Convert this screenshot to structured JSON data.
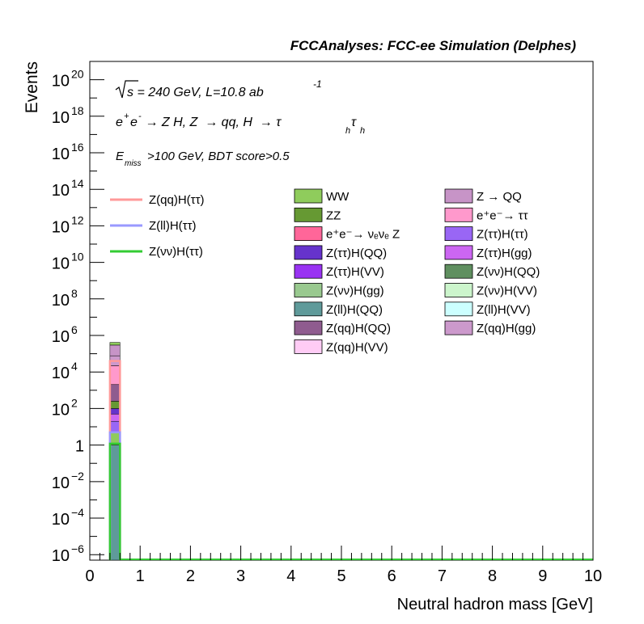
{
  "chart_data": {
    "type": "bar",
    "header": "FCCAnalyses: FCC-ee Simulation (Delphes)",
    "annotations": {
      "line1_sqrt": "s",
      "line1_rest": " = 240 GeV, L=10.8 ab",
      "line1_sup": "-1",
      "line2_a": "e",
      "line2_sup1": "+",
      "line2_b": "e",
      "line2_sup2": "-",
      "line2_c": " → Z H, Z  → qq, H  → τ",
      "line2_sub1": "h",
      "line2_d": "τ",
      "line2_sub2": "h",
      "line3_a": "E",
      "line3_sub": "miss",
      "line3_b": ">100 GeV, BDT score>0.5"
    },
    "xlabel": "Neutral hadron mass [GeV]",
    "ylabel": "Events",
    "xlim": [
      0,
      10
    ],
    "ylim_log10": [
      -6.3,
      21
    ],
    "log_y": true,
    "x_ticks": [
      "0",
      "1",
      "2",
      "3",
      "4",
      "5",
      "6",
      "7",
      "8",
      "9",
      "10"
    ],
    "y_ticks": [
      {
        "exp": -6,
        "base": "10",
        "sup": "−6"
      },
      {
        "exp": -4,
        "base": "10",
        "sup": "−4"
      },
      {
        "exp": -2,
        "base": "10",
        "sup": "−2"
      },
      {
        "exp": 0,
        "base": "1",
        "sup": ""
      },
      {
        "exp": 2,
        "base": "10",
        "sup": "2"
      },
      {
        "exp": 4,
        "base": "10",
        "sup": "4"
      },
      {
        "exp": 6,
        "base": "10",
        "sup": "6"
      },
      {
        "exp": 8,
        "base": "10",
        "sup": "8"
      },
      {
        "exp": 10,
        "base": "10",
        "sup": "10"
      },
      {
        "exp": 12,
        "base": "10",
        "sup": "12"
      },
      {
        "exp": 14,
        "base": "10",
        "sup": "14"
      },
      {
        "exp": 16,
        "base": "10",
        "sup": "16"
      },
      {
        "exp": 18,
        "base": "10",
        "sup": "18"
      },
      {
        "exp": 20,
        "base": "10",
        "sup": "20"
      }
    ],
    "bin": [
      0.4,
      0.6
    ],
    "stack": [
      {
        "name": "Z(ll)H(QQ)",
        "value": 1,
        "color": "#5f9a9a"
      },
      {
        "name": "WW",
        "value": 4,
        "color": "#8fcc5c"
      },
      {
        "name": "Z(ττ)H(ττ)",
        "value": 15,
        "color": "#9966f5"
      },
      {
        "name": "Z(ττ)H(gg)",
        "value": 30,
        "color": "#cc66f2"
      },
      {
        "name": "Z(ττ)H(QQ)",
        "value": 50,
        "color": "#6633cc"
      },
      {
        "name": "ZZ",
        "value": 150,
        "color": "#669933"
      },
      {
        "name": "Z(qq)H(QQ)",
        "value": 1800,
        "color": "#8f5c8f"
      },
      {
        "name": "e⁺e⁻→ ττ",
        "value": 20000,
        "color": "#ff99cc"
      },
      {
        "name": "Z(qq)H(gg)",
        "value": 55000,
        "color": "#cc99cc"
      },
      {
        "name": "Z → QQ",
        "value": 220000,
        "color": "#c794c7"
      },
      {
        "name": "WW",
        "value": 120000,
        "color": "#8fcc5c"
      }
    ],
    "signals": [
      {
        "name": "Z(qq)H(ττ)",
        "value": 40000,
        "color": "#ff9999"
      },
      {
        "name": "Z(ll)H(ττ)",
        "value": 5,
        "color": "#9999ff"
      },
      {
        "name": "Z(νν)H(ττ)",
        "value": 1.2,
        "color": "#33cc33"
      }
    ],
    "legend_lines": [
      {
        "name": "Z(qq)H(ττ)",
        "color": "#ff9999"
      },
      {
        "name": "Z(ll)H(ττ)",
        "color": "#9999ff"
      },
      {
        "name": "Z(νν)H(ττ)",
        "color": "#33cc33"
      }
    ],
    "legend_boxes_col1": [
      {
        "name": "WW",
        "color": "#8fcc5c"
      },
      {
        "name": "ZZ",
        "color": "#669933"
      },
      {
        "name": "e⁺e⁻→ νₑνₑ Z",
        "color": "#ff6699"
      },
      {
        "name": "Z(ττ)H(QQ)",
        "color": "#6633cc"
      },
      {
        "name": "Z(ττ)H(VV)",
        "color": "#9933f2"
      },
      {
        "name": "Z(νν)H(gg)",
        "color": "#99c98f"
      },
      {
        "name": "Z(ll)H(QQ)",
        "color": "#5f9a9a"
      },
      {
        "name": "Z(qq)H(QQ)",
        "color": "#8f5c8f"
      },
      {
        "name": "Z(qq)H(VV)",
        "color": "#ffccf5"
      }
    ],
    "legend_boxes_col2": [
      {
        "name": "Z → QQ",
        "color": "#c794c7"
      },
      {
        "name": "e⁺e⁻→ ττ",
        "color": "#ff99cc"
      },
      {
        "name": "Z(ττ)H(ττ)",
        "color": "#9966f5"
      },
      {
        "name": "Z(ττ)H(gg)",
        "color": "#cc66f2"
      },
      {
        "name": "Z(νν)H(QQ)",
        "color": "#5f8f5f"
      },
      {
        "name": "Z(νν)H(VV)",
        "color": "#ccf5cc"
      },
      {
        "name": "Z(ll)H(VV)",
        "color": "#ccffff"
      },
      {
        "name": "Z(qq)H(gg)",
        "color": "#cc99cc"
      }
    ]
  }
}
